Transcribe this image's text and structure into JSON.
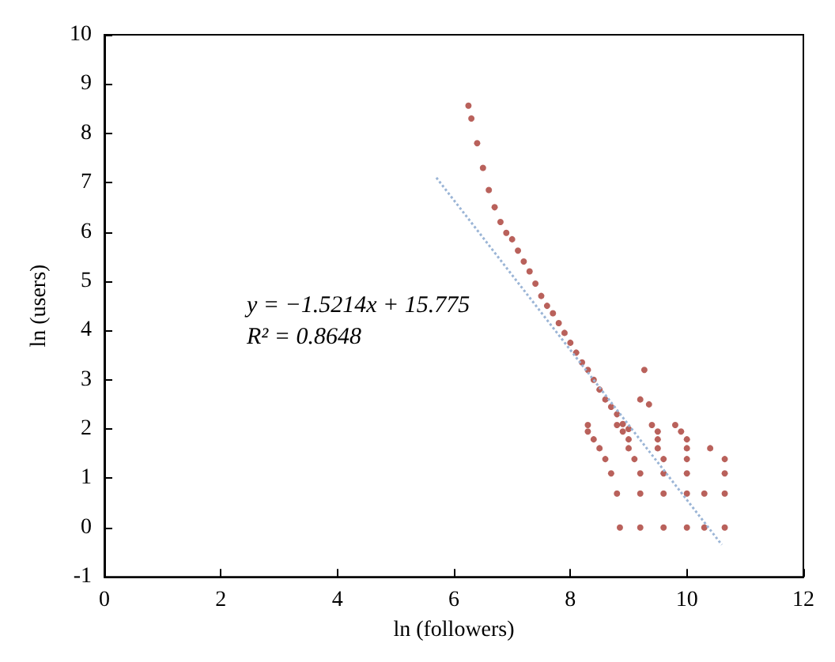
{
  "chart_data": {
    "type": "scatter",
    "xlabel": "ln (followers)",
    "ylabel": "ln (users)",
    "xlim": [
      0,
      12
    ],
    "xticks": [
      0,
      2,
      4,
      6,
      8,
      10,
      12
    ],
    "ylim": [
      -1,
      10
    ],
    "yticks": [
      -1,
      0,
      1,
      2,
      3,
      4,
      5,
      6,
      7,
      8,
      9,
      10
    ],
    "grid": false,
    "marker": "circle",
    "annotations": [
      "y = −1.5214x + 15.775",
      "R² = 0.8648"
    ],
    "series": [
      {
        "color": "#a83a32",
        "x": [
          6.25,
          6.3,
          6.4,
          6.5,
          6.6,
          6.7,
          6.8,
          6.9,
          7.0,
          7.1,
          7.2,
          7.3,
          7.4,
          7.5,
          7.6,
          7.7,
          7.8,
          7.9,
          8.0,
          8.1,
          8.2,
          8.3,
          8.4,
          8.5,
          8.6,
          8.7,
          8.8,
          8.9,
          9.0,
          9.2,
          9.27,
          9.35,
          8.85,
          9.2,
          9.6,
          10.0,
          10.3,
          10.65,
          8.8,
          9.2,
          9.6,
          10.0,
          10.3,
          10.65,
          8.7,
          9.2,
          9.6,
          10.0,
          10.65,
          8.6,
          9.1,
          9.6,
          10.0,
          10.65,
          8.5,
          9.0,
          9.5,
          10.0,
          10.4,
          8.4,
          9.0,
          9.5,
          10.0,
          8.3,
          8.9,
          9.5,
          9.9,
          8.3,
          8.8,
          9.4,
          9.8
        ],
        "values": [
          8.56,
          8.3,
          7.8,
          7.3,
          6.85,
          6.5,
          6.2,
          5.98,
          5.85,
          5.62,
          5.4,
          5.2,
          4.95,
          4.7,
          4.5,
          4.35,
          4.15,
          3.95,
          3.75,
          3.55,
          3.35,
          3.2,
          3.0,
          2.8,
          2.6,
          2.45,
          2.3,
          2.1,
          2.0,
          2.6,
          3.2,
          2.5,
          0,
          0,
          0,
          0,
          0,
          0,
          0.69,
          0.69,
          0.69,
          0.69,
          0.69,
          0.69,
          1.1,
          1.1,
          1.1,
          1.1,
          1.1,
          1.39,
          1.39,
          1.39,
          1.39,
          1.39,
          1.61,
          1.61,
          1.61,
          1.61,
          1.61,
          1.79,
          1.79,
          1.79,
          1.79,
          1.95,
          1.95,
          1.95,
          1.95,
          2.08,
          2.08,
          2.08,
          2.08
        ]
      },
      {
        "type": "line",
        "color": "#9bb5d6",
        "line_style": "dotted",
        "marker": "none",
        "x": [
          5.7,
          10.6
        ],
        "values": [
          7.1,
          -0.35
        ]
      }
    ]
  }
}
